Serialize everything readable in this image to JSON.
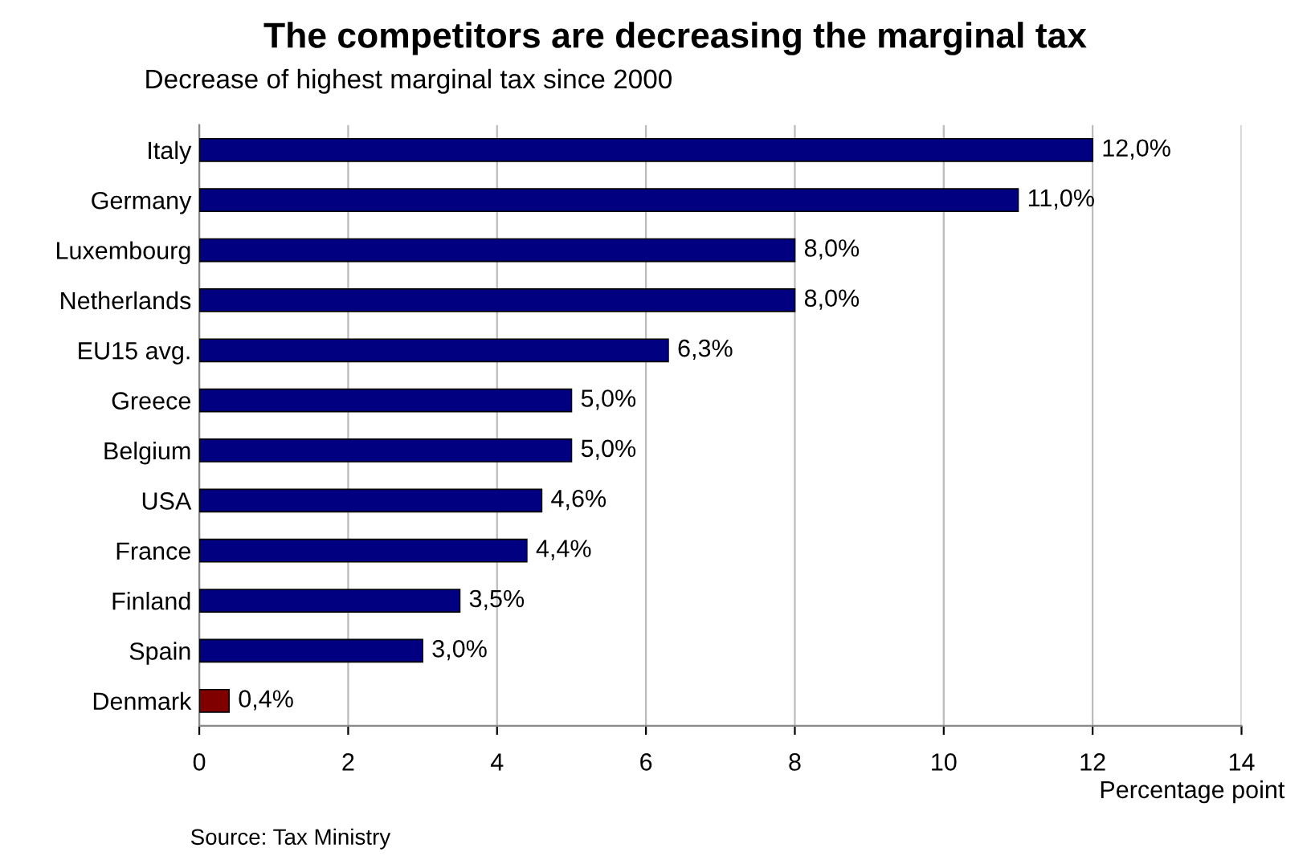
{
  "chart_data": {
    "type": "bar",
    "orientation": "horizontal",
    "title": "The competitors are decreasing the marginal tax",
    "subtitle": "Decrease of highest marginal tax since 2000",
    "xlabel": "Percentage point",
    "annotations": [
      "Source: Tax Ministry"
    ],
    "categories": [
      "Italy",
      "Germany",
      "Luxembourg",
      "Netherlands",
      "EU15 avg.",
      "Greece",
      "Belgium",
      "USA",
      "France",
      "Finland",
      "Spain",
      "Denmark"
    ],
    "values": [
      12.0,
      11.0,
      8.0,
      8.0,
      6.3,
      5.0,
      5.0,
      4.6,
      4.4,
      3.5,
      3.0,
      0.4
    ],
    "value_labels": [
      "12,0%",
      "11,0%",
      "8,0%",
      "8,0%",
      "6,3%",
      "5,0%",
      "5,0%",
      "4,6%",
      "4,4%",
      "3,5%",
      "3,0%",
      "0,4%"
    ],
    "colors": [
      "#000080",
      "#000080",
      "#000080",
      "#000080",
      "#000080",
      "#000080",
      "#000080",
      "#000080",
      "#000080",
      "#000080",
      "#000080",
      "#800000"
    ],
    "xlim": [
      0,
      14
    ],
    "xticks": [
      0,
      2,
      4,
      6,
      8,
      10,
      12,
      14
    ],
    "grid": "x",
    "legend": false
  }
}
